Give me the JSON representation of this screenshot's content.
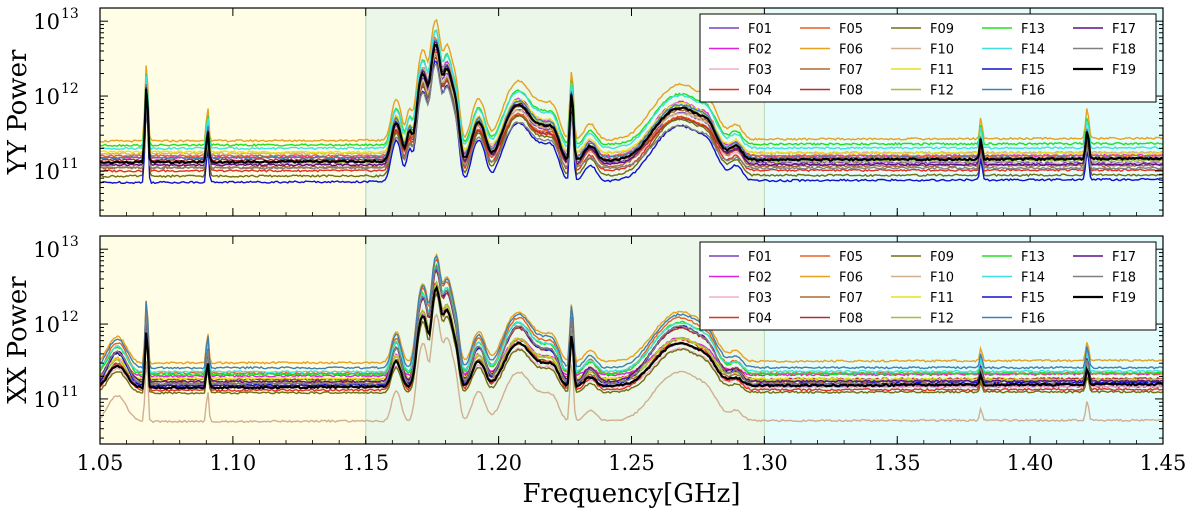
{
  "chart_data": {
    "type": "line",
    "xlabel": "Frequency[GHz]",
    "xlim": [
      1.05,
      1.45
    ],
    "x_ticks": [
      "1.05",
      "1.10",
      "1.15",
      "1.20",
      "1.25",
      "1.30",
      "1.35",
      "1.40",
      "1.45"
    ],
    "y_scale": "log",
    "y_ticks": [
      {
        "base": "10",
        "exp": "11",
        "value": 100000000000.0
      },
      {
        "base": "10",
        "exp": "12",
        "value": 1000000000000.0
      },
      {
        "base": "10",
        "exp": "13",
        "value": 10000000000000.0
      }
    ],
    "bands": [
      {
        "from": 1.05,
        "to": 1.15,
        "color": "#fffde6"
      },
      {
        "from": 1.15,
        "to": 1.3,
        "color": "#eaf7e9"
      },
      {
        "from": 1.3,
        "to": 1.45,
        "color": "#e4fcfc"
      }
    ],
    "legend_location": "top-right",
    "series": [
      {
        "name": "F01",
        "color": "#7f3fbf"
      },
      {
        "name": "F02",
        "color": "#e020e0"
      },
      {
        "name": "F03",
        "color": "#f0b0c8"
      },
      {
        "name": "F04",
        "color": "#e03020"
      },
      {
        "name": "F05",
        "color": "#e86020"
      },
      {
        "name": "F06",
        "color": "#e8a020"
      },
      {
        "name": "F07",
        "color": "#b06a30"
      },
      {
        "name": "F08",
        "color": "#b03030"
      },
      {
        "name": "F09",
        "color": "#707010"
      },
      {
        "name": "F10",
        "color": "#d0b090"
      },
      {
        "name": "F11",
        "color": "#e8e020"
      },
      {
        "name": "F12",
        "color": "#a0c040"
      },
      {
        "name": "F13",
        "color": "#20e020"
      },
      {
        "name": "F14",
        "color": "#40e0e0"
      },
      {
        "name": "F15",
        "color": "#1010d0"
      },
      {
        "name": "F16",
        "color": "#4080b0"
      },
      {
        "name": "F17",
        "color": "#601080"
      },
      {
        "name": "F18",
        "color": "#808080"
      },
      {
        "name": "F19",
        "color": "#000000"
      }
    ],
    "panels": [
      {
        "id": "yy",
        "ylabel": "YY Power",
        "ylim": [
          25000000000.0,
          15000000000000.0
        ],
        "show_xticklabels": false,
        "baseline": {
          "F01": 130000000000.0,
          "F02": 150000000000.0,
          "F03": 120000000000.0,
          "F04": 100000000000.0,
          "F05": 160000000000.0,
          "F06": 250000000000.0,
          "F07": 110000000000.0,
          "F08": 140000000000.0,
          "F09": 85000000000.0,
          "F10": 170000000000.0,
          "F11": 180000000000.0,
          "F12": 130000000000.0,
          "F13": 220000000000.0,
          "F14": 200000000000.0,
          "F15": 70000000000.0,
          "F16": 150000000000.0,
          "F17": 120000000000.0,
          "F18": 110000000000.0,
          "F19": 130000000000.0
        },
        "features": [
          {
            "f": 1.0675,
            "w": 0.0004,
            "a": 8.0
          },
          {
            "f": 1.0905,
            "w": 0.0004,
            "a": 1.5
          },
          {
            "f": 1.1615,
            "w": 0.0015,
            "a": 2.0
          },
          {
            "f": 1.1665,
            "w": 0.001,
            "a": 1.3
          },
          {
            "f": 1.1715,
            "w": 0.0015,
            "a": 12.0
          },
          {
            "f": 1.1755,
            "w": 0.0012,
            "a": 8.0
          },
          {
            "f": 1.1765,
            "w": 0.0012,
            "a": 25.0
          },
          {
            "f": 1.1805,
            "w": 0.0015,
            "a": 14.0
          },
          {
            "f": 1.1835,
            "w": 0.0012,
            "a": 4.0
          },
          {
            "f": 1.1925,
            "w": 0.002,
            "a": 2.0
          },
          {
            "f": 1.2075,
            "w": 0.004,
            "a": 4.0
          },
          {
            "f": 1.2165,
            "w": 0.003,
            "a": 1.3
          },
          {
            "f": 1.2205,
            "w": 0.002,
            "a": 1.0
          },
          {
            "f": 1.2275,
            "w": 0.0005,
            "a": 6.0
          },
          {
            "f": 1.2345,
            "w": 0.002,
            "a": 0.5
          },
          {
            "f": 1.2685,
            "w": 0.0075,
            "a": 3.5
          },
          {
            "f": 1.2785,
            "w": 0.0025,
            "a": 0.8
          },
          {
            "f": 1.2895,
            "w": 0.002,
            "a": 0.4
          },
          {
            "f": 1.3815,
            "w": 0.0004,
            "a": 0.8
          },
          {
            "f": 1.4215,
            "w": 0.0005,
            "a": 1.2
          }
        ]
      },
      {
        "id": "xx",
        "ylabel": "XX Power",
        "ylim": [
          25000000000.0,
          15000000000000.0
        ],
        "show_xticklabels": true,
        "baseline": {
          "F01": 150000000000.0,
          "F02": 200000000000.0,
          "F03": 140000000000.0,
          "F04": 130000000000.0,
          "F05": 220000000000.0,
          "F06": 300000000000.0,
          "F07": 160000000000.0,
          "F08": 180000000000.0,
          "F09": 120000000000.0,
          "F10": 50000000000.0,
          "F11": 190000000000.0,
          "F12": 170000000000.0,
          "F13": 210000000000.0,
          "F14": 230000000000.0,
          "F15": 150000000000.0,
          "F16": 260000000000.0,
          "F17": 170000000000.0,
          "F18": 160000000000.0,
          "F19": 140000000000.0
        },
        "features": [
          {
            "f": 1.0565,
            "w": 0.003,
            "a": 1.2
          },
          {
            "f": 1.0675,
            "w": 0.0004,
            "a": 6.0
          },
          {
            "f": 1.0905,
            "w": 0.0004,
            "a": 1.5
          },
          {
            "f": 1.1615,
            "w": 0.0015,
            "a": 1.5
          },
          {
            "f": 1.1715,
            "w": 0.0015,
            "a": 10.0
          },
          {
            "f": 1.1765,
            "w": 0.0012,
            "a": 25.0
          },
          {
            "f": 1.1805,
            "w": 0.0015,
            "a": 12.0
          },
          {
            "f": 1.1835,
            "w": 0.0012,
            "a": 3.0
          },
          {
            "f": 1.1925,
            "w": 0.002,
            "a": 1.5
          },
          {
            "f": 1.2075,
            "w": 0.004,
            "a": 3.5
          },
          {
            "f": 1.2165,
            "w": 0.003,
            "a": 1.0
          },
          {
            "f": 1.2205,
            "w": 0.002,
            "a": 0.8
          },
          {
            "f": 1.2275,
            "w": 0.0005,
            "a": 5.0
          },
          {
            "f": 1.2345,
            "w": 0.002,
            "a": 0.4
          },
          {
            "f": 1.2685,
            "w": 0.0075,
            "a": 3.5
          },
          {
            "f": 1.2785,
            "w": 0.0025,
            "a": 0.6
          },
          {
            "f": 1.2895,
            "w": 0.002,
            "a": 0.3
          },
          {
            "f": 1.3815,
            "w": 0.0004,
            "a": 0.5
          },
          {
            "f": 1.4215,
            "w": 0.0005,
            "a": 0.8
          }
        ]
      }
    ]
  }
}
